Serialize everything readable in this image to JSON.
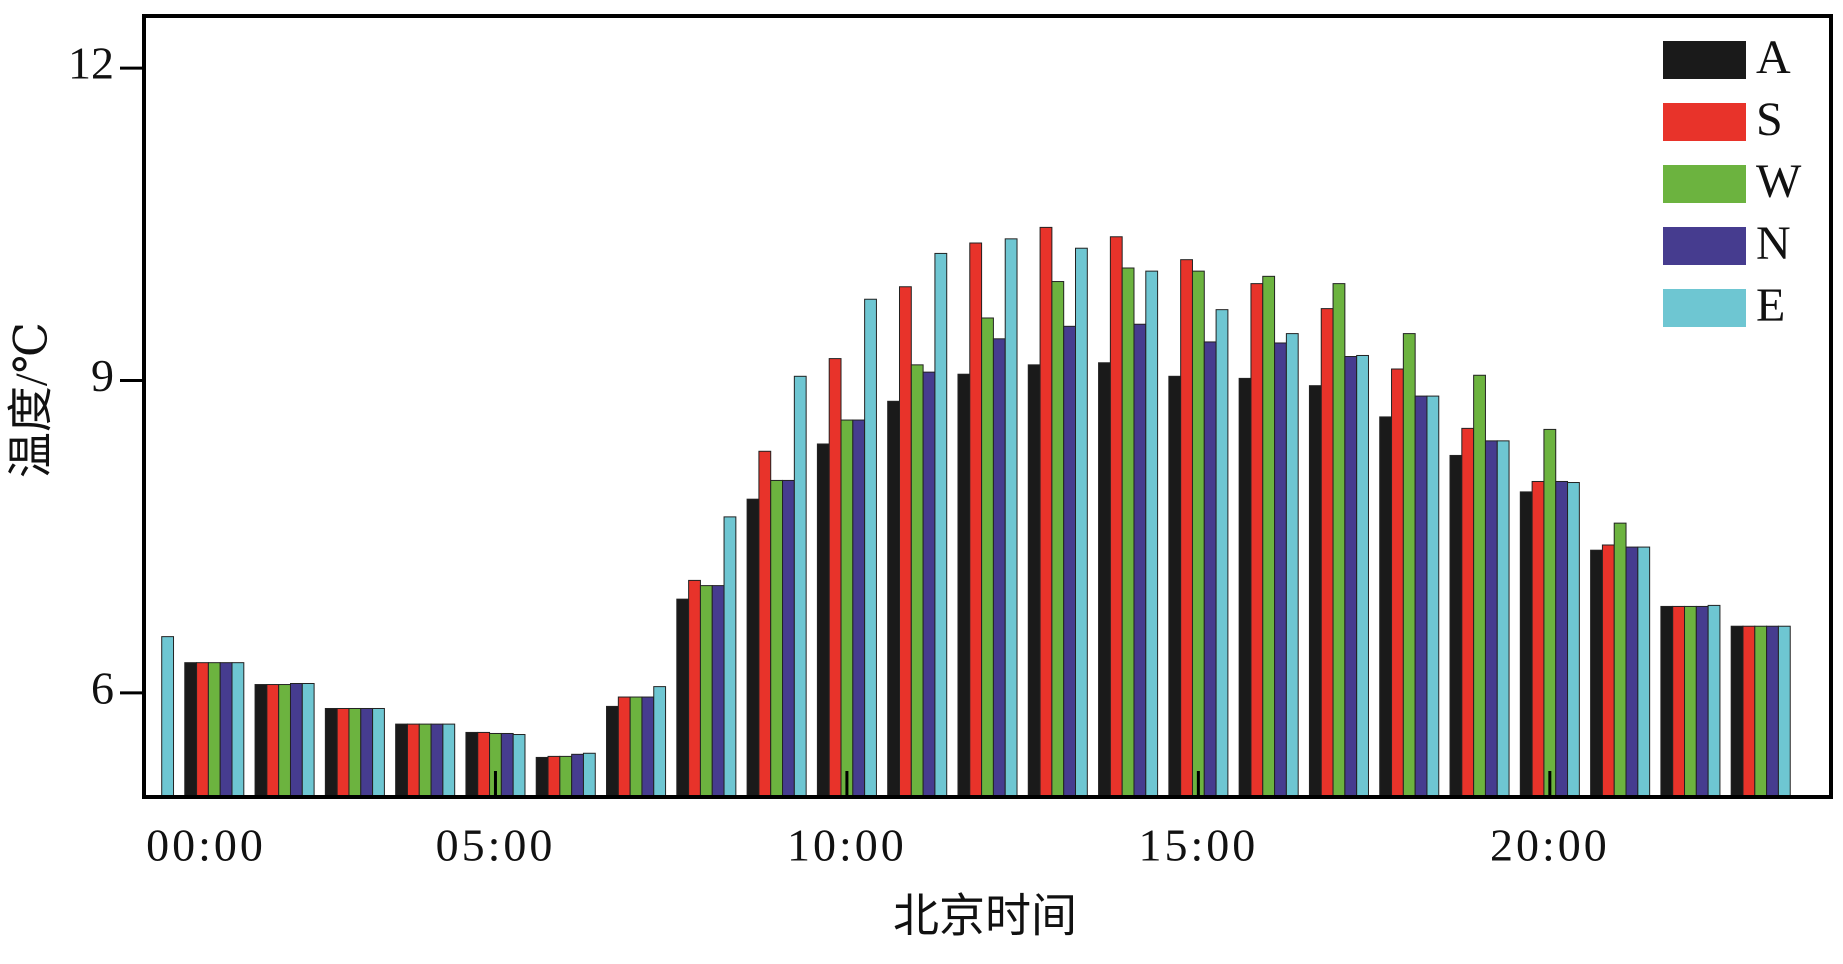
{
  "chart_data": {
    "type": "bar",
    "x_label": "北京时间",
    "y_label": "温度/℃",
    "x": [
      0,
      1,
      2,
      3,
      4,
      5,
      6,
      7,
      8,
      9,
      10,
      11,
      12,
      13,
      14,
      15,
      16,
      17,
      18,
      19,
      20,
      21,
      22,
      23
    ],
    "series": [
      {
        "name": "A",
        "color": "#1a1a1a",
        "values": [
          null,
          6.29,
          6.08,
          5.85,
          5.7,
          5.62,
          5.38,
          5.87,
          6.9,
          7.86,
          8.39,
          8.8,
          9.06,
          9.15,
          9.17,
          9.04,
          9.02,
          8.95,
          8.65,
          8.28,
          7.93,
          7.37,
          6.83,
          6.64
        ]
      },
      {
        "name": "S",
        "color": "#e8332a",
        "values": [
          null,
          6.29,
          6.08,
          5.85,
          5.7,
          5.62,
          5.39,
          5.96,
          7.08,
          8.32,
          9.21,
          9.9,
          10.32,
          10.47,
          10.38,
          10.16,
          9.93,
          9.69,
          9.11,
          8.54,
          8.03,
          7.42,
          6.83,
          6.64
        ]
      },
      {
        "name": "W",
        "color": "#6cb33f",
        "values": [
          null,
          6.29,
          6.08,
          5.85,
          5.7,
          5.61,
          5.39,
          5.96,
          7.03,
          8.04,
          8.62,
          9.15,
          9.6,
          9.95,
          10.08,
          10.05,
          10.0,
          9.93,
          9.45,
          9.05,
          8.53,
          7.63,
          6.83,
          6.64
        ]
      },
      {
        "name": "N",
        "color": "#463c8f",
        "values": [
          null,
          6.29,
          6.09,
          5.85,
          5.7,
          5.61,
          5.41,
          5.96,
          7.03,
          8.04,
          8.62,
          9.08,
          9.4,
          9.52,
          9.54,
          9.37,
          9.36,
          9.23,
          8.85,
          8.42,
          8.03,
          7.4,
          6.83,
          6.64
        ]
      },
      {
        "name": "E",
        "color": "#6ec6d2",
        "values": [
          6.54,
          6.29,
          6.09,
          5.85,
          5.7,
          5.6,
          5.42,
          6.06,
          7.69,
          9.04,
          9.78,
          10.22,
          10.36,
          10.27,
          10.05,
          9.68,
          9.45,
          9.24,
          8.85,
          8.42,
          8.02,
          7.4,
          6.84,
          6.64
        ]
      }
    ],
    "xlim": [
      0,
      24
    ],
    "xticks": [
      {
        "value": 0,
        "label": "00:00"
      },
      {
        "value": 5,
        "label": "05:00"
      },
      {
        "value": 10,
        "label": "10:00"
      },
      {
        "value": 15,
        "label": "15:00"
      },
      {
        "value": 20,
        "label": "20:00"
      }
    ],
    "ylim": [
      5.0,
      12.5
    ],
    "yticks": [
      6,
      9,
      12
    ],
    "legend": "upper right",
    "grid": false
  }
}
